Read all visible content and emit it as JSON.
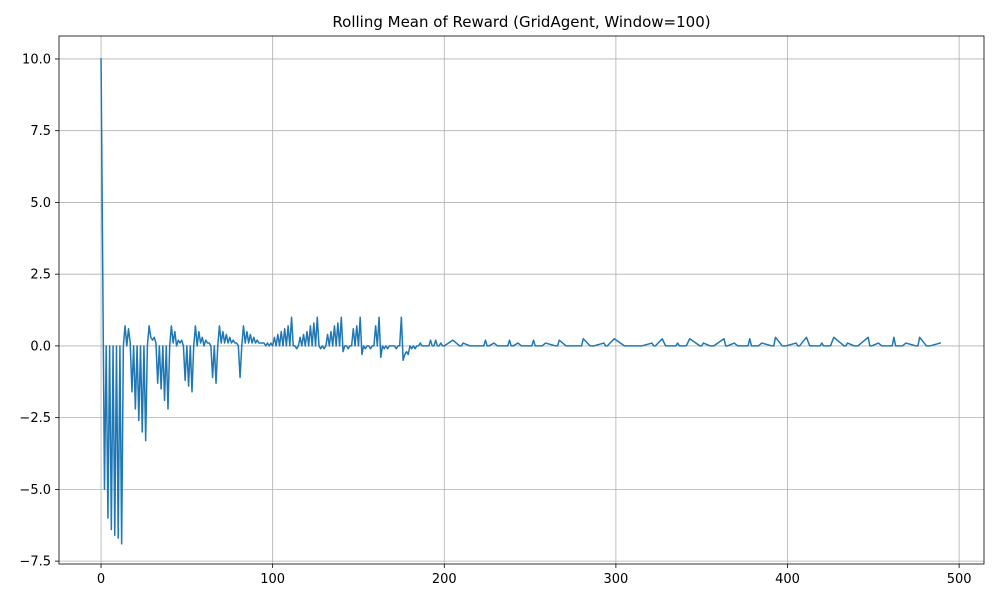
{
  "chart_data": {
    "type": "line",
    "title": "Rolling Mean of Reward (GridAgent, Window=100)",
    "xlabel": "",
    "ylabel": "",
    "xlim": [
      -24.5,
      514.5
    ],
    "ylim": [
      -7.6,
      10.8
    ],
    "xticks": [
      0,
      100,
      200,
      300,
      400,
      500
    ],
    "xtick_labels": [
      "0",
      "100",
      "200",
      "300",
      "400",
      "500"
    ],
    "yticks": [
      -7.5,
      -5.0,
      -2.5,
      0.0,
      2.5,
      5.0,
      7.5,
      10.0
    ],
    "ytick_labels": [
      "−7.5",
      "−5.0",
      "−2.5",
      "0.0",
      "2.5",
      "5.0",
      "7.5",
      "10.0"
    ],
    "grid": true,
    "legend": false,
    "series": [
      {
        "color": "#1f77b4",
        "x": [
          0,
          2,
          3,
          4,
          5,
          6,
          7,
          8,
          9,
          10,
          11,
          12,
          13,
          14,
          15,
          16,
          17,
          18,
          19,
          20,
          21,
          22,
          23,
          24,
          25,
          26,
          27,
          28,
          29,
          30,
          31,
          32,
          33,
          34,
          35,
          36,
          37,
          38,
          39,
          40,
          41,
          42,
          43,
          44,
          45,
          46,
          47,
          48,
          49,
          50,
          51,
          52,
          53,
          54,
          55,
          56,
          57,
          58,
          59,
          60,
          61,
          62,
          63,
          64,
          65,
          66,
          67,
          68,
          69,
          70,
          71,
          72,
          73,
          74,
          75,
          76,
          77,
          78,
          79,
          80,
          81,
          82,
          83,
          84,
          85,
          86,
          87,
          88,
          89,
          90,
          91,
          92,
          93,
          94,
          95,
          96,
          97,
          98,
          99,
          100,
          101,
          102,
          103,
          104,
          105,
          106,
          107,
          108,
          109,
          110,
          111,
          112,
          113,
          114,
          115,
          116,
          117,
          118,
          119,
          120,
          121,
          122,
          123,
          124,
          125,
          126,
          127,
          128,
          129,
          130,
          131,
          132,
          133,
          134,
          135,
          136,
          137,
          138,
          139,
          140,
          141,
          142,
          143,
          144,
          145,
          146,
          147,
          148,
          149,
          150,
          151,
          152,
          153,
          154,
          155,
          156,
          157,
          158,
          159,
          160,
          161,
          162,
          163,
          164,
          165,
          166,
          167,
          168,
          169,
          170,
          171,
          172,
          173,
          174,
          175,
          176,
          177,
          178,
          179,
          180,
          181,
          182,
          183,
          184,
          185,
          186,
          187,
          188,
          189,
          190,
          191,
          192,
          193,
          194,
          195,
          196,
          197,
          198,
          199,
          200,
          205,
          209,
          210,
          211,
          215,
          223,
          224,
          225,
          226,
          229,
          231,
          237,
          238,
          239,
          240,
          243,
          245,
          251,
          252,
          253,
          257,
          259,
          265,
          266,
          267,
          271,
          273,
          279,
          280,
          281,
          285,
          287,
          293,
          294,
          295,
          299,
          305,
          315,
          321,
          322,
          323,
          327,
          329,
          335,
          336,
          337,
          341,
          343,
          349,
          350,
          351,
          355,
          357,
          363,
          364,
          365,
          369,
          371,
          377,
          378,
          379,
          383,
          385,
          391,
          392,
          393,
          397,
          399,
          405,
          406,
          407,
          411,
          413,
          419,
          420,
          421,
          425,
          427,
          433,
          434,
          435,
          439,
          441,
          447,
          448,
          449,
          453,
          455,
          461,
          462,
          463,
          467,
          469,
          475,
          476,
          477,
          481,
          483,
          489
        ],
        "y": [
          10.0,
          -5.0,
          0.0,
          -6.0,
          0.0,
          -6.4,
          0.0,
          -6.6,
          0.0,
          -6.7,
          0.0,
          -6.9,
          0.0,
          0.7,
          0.0,
          0.6,
          0.1,
          -1.6,
          0.0,
          -2.2,
          0.0,
          -2.6,
          0.0,
          -3.0,
          0.0,
          -3.3,
          0.0,
          0.7,
          0.3,
          0.2,
          0.3,
          0.1,
          -1.3,
          0.0,
          -1.5,
          0.0,
          -1.9,
          0.0,
          -2.2,
          0.0,
          0.7,
          0.1,
          0.5,
          0.0,
          0.2,
          0.1,
          0.2,
          0.0,
          -1.2,
          0.0,
          -1.4,
          0.0,
          -1.6,
          0.0,
          0.7,
          0.0,
          0.5,
          0.1,
          0.3,
          0.0,
          0.2,
          0.1,
          0.1,
          0.0,
          -1.1,
          0.0,
          -1.3,
          0.0,
          0.7,
          0.1,
          0.5,
          0.1,
          0.4,
          0.1,
          0.3,
          0.1,
          0.2,
          0.1,
          0.1,
          0.0,
          -1.1,
          0.0,
          0.7,
          0.1,
          0.5,
          0.1,
          0.4,
          0.1,
          0.3,
          0.1,
          0.2,
          0.1,
          0.1,
          0.1,
          0.1,
          0.0,
          0.1,
          0.0,
          0.1,
          0.0,
          0.3,
          0.0,
          0.4,
          0.0,
          0.5,
          0.0,
          0.6,
          0.0,
          0.7,
          0.0,
          1.0,
          0.0,
          0.0,
          -0.1,
          0.0,
          0.3,
          0.0,
          0.4,
          0.0,
          0.5,
          0.0,
          0.7,
          0.0,
          0.8,
          0.0,
          1.0,
          0.0,
          -0.1,
          0.0,
          -0.1,
          0.0,
          0.4,
          0.0,
          0.5,
          0.0,
          0.7,
          0.0,
          0.8,
          0.0,
          1.0,
          -0.2,
          0.0,
          0.0,
          -0.1,
          0.0,
          0.0,
          0.6,
          0.0,
          0.7,
          0.0,
          1.0,
          -0.3,
          0.0,
          -0.1,
          0.0,
          0.0,
          -0.1,
          0.0,
          0.0,
          0.7,
          0.0,
          1.0,
          -0.4,
          0.0,
          -0.1,
          0.0,
          -0.1,
          0.0,
          0.0,
          0.0,
          0.0,
          -0.1,
          0.0,
          0.0,
          1.0,
          -0.5,
          -0.3,
          -0.2,
          -0.3,
          0.0,
          -0.1,
          0.0,
          -0.1,
          0.0,
          0.0,
          0.1,
          0.0,
          0.0,
          0.0,
          0.0,
          0.0,
          0.2,
          0.0,
          0.0,
          0.2,
          0.0,
          0.0,
          0.1,
          0.0,
          0.0,
          0.2,
          0.0,
          0.0,
          0.1,
          0.0,
          0.0,
          0.2,
          0.0,
          0.0,
          0.1,
          0.0,
          0.0,
          0.2,
          0.0,
          0.0,
          0.1,
          0.0,
          0.0,
          0.2,
          0.0,
          0.0,
          0.1,
          0.0,
          0.0,
          0.2,
          0.0,
          0.0,
          0.0,
          0.0,
          0.25,
          0.0,
          0.0,
          0.1,
          0.0,
          0.0,
          0.25,
          0.0,
          0.0,
          0.1,
          0.0,
          0.0,
          0.25,
          0.0,
          0.0,
          0.1,
          0.0,
          0.0,
          0.25,
          0.0,
          0.0,
          0.1,
          0.0,
          0.0,
          0.25,
          0.0,
          0.0,
          0.1,
          0.0,
          0.0,
          0.25,
          0.0,
          0.0,
          0.1,
          0.0,
          0.0,
          0.3,
          0.0,
          0.0,
          0.1,
          0.0,
          0.0,
          0.3,
          0.0,
          0.0,
          0.1,
          0.0,
          0.0,
          0.3,
          0.0,
          0.0,
          0.1,
          0.0,
          0.0,
          0.3,
          0.0,
          0.0,
          0.1,
          0.0,
          0.0,
          0.3,
          0.0,
          0.0,
          0.1,
          0.0,
          0.0,
          0.3,
          0.0,
          0.0,
          0.1
        ]
      }
    ]
  }
}
